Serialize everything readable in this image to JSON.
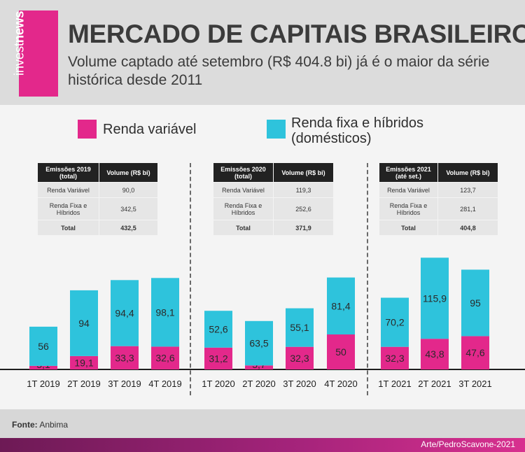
{
  "brand": {
    "logo_regular": "invest",
    "logo_bold": "news",
    "pink": "#e3288b",
    "cyan": "#2ec3dc"
  },
  "header": {
    "title": "MERCADO DE CAPITAIS BRASILEIRO",
    "subtitle": "Volume captado até setembro (R$ 404.8 bi) já é o maior da série histórica desde 2011"
  },
  "legend": {
    "renda_variavel": "Renda variável",
    "renda_fixa": "Renda fixa e híbridos (domésticos)"
  },
  "tables": [
    {
      "h1": "Emissões 2019 (total)",
      "h2": "Volume (R$ bi)",
      "r1l": "Renda Variável",
      "r1v": "90,0",
      "r2l": "Renda Fixa e Híbridos",
      "r2v": "342,5",
      "r3l": "Total",
      "r3v": "432,5"
    },
    {
      "h1": "Emissões 2020 (total)",
      "h2": "Volume (R$ bi)",
      "r1l": "Renda Variável",
      "r1v": "119,3",
      "r2l": "Renda Fixa e Híbridos",
      "r2v": "252,6",
      "r3l": "Total",
      "r3v": "371,9"
    },
    {
      "h1": "Emissões 2021 (até set.)",
      "h2": "Volume (R$ bi)",
      "r1l": "Renda Variável",
      "r1v": "123,7",
      "r2l": "Renda Fixa e Híbridos",
      "r2v": "281,1",
      "r3l": "Total",
      "r3v": "404,8"
    }
  ],
  "chart_data": {
    "type": "bar",
    "stacked": true,
    "categories": [
      "1T 2019",
      "2T 2019",
      "3T 2019",
      "4T 2019",
      "1T 2020",
      "2T 2020",
      "3T 2020",
      "4T 2020",
      "1T 2021",
      "2T 2021",
      "3T 2021"
    ],
    "series": [
      {
        "name": "Renda variável",
        "color": "#e3288b",
        "values": [
          5.1,
          19.1,
          33.3,
          32.6,
          31.2,
          5.7,
          32.3,
          50,
          32.3,
          43.8,
          47.6
        ],
        "labels": [
          "5,1",
          "19,1",
          "33,3",
          "32,6",
          "31,2",
          "5,7",
          "32,3",
          "50",
          "32,3",
          "43,8",
          "47,6"
        ]
      },
      {
        "name": "Renda fixa e híbridos (domésticos)",
        "color": "#2ec3dc",
        "values": [
          56,
          94,
          94.4,
          98.1,
          52.6,
          63.5,
          55.1,
          81.4,
          70.2,
          115.9,
          95
        ],
        "labels": [
          "56",
          "94",
          "94,4",
          "98,1",
          "52,6",
          "63,5",
          "55,1",
          "81,4",
          "70,2",
          "115,9",
          "95"
        ]
      }
    ],
    "grid": false
  },
  "source": {
    "label": "Fonte:",
    "value": "Anbima"
  },
  "credit": "Arte/PedroScavone-2021"
}
